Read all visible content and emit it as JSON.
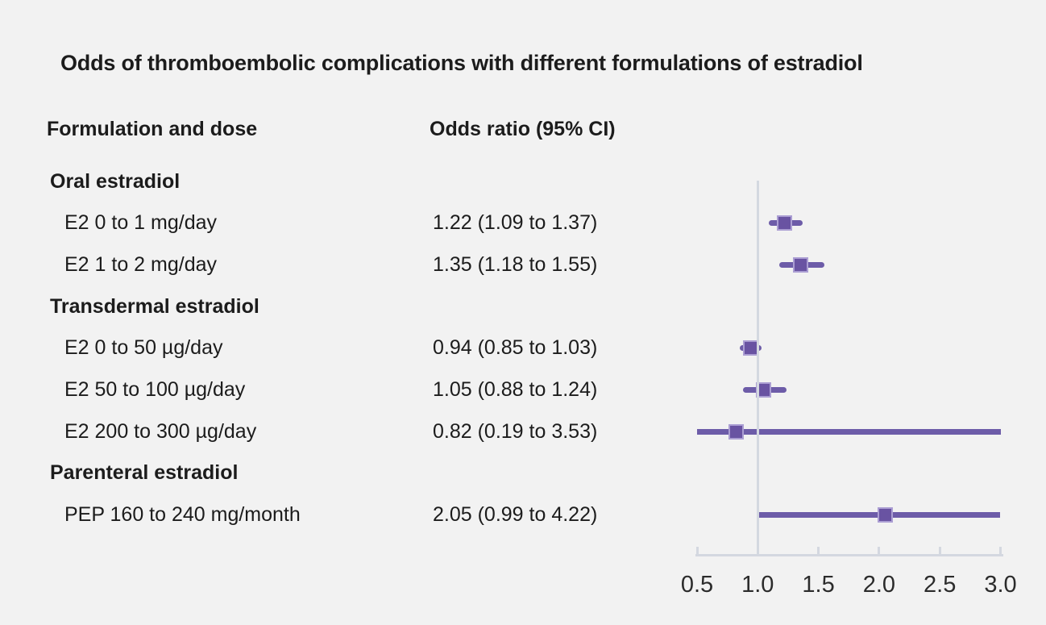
{
  "title": "Odds of thromboembolic complications with different formulations of estradiol",
  "columns": {
    "left": "Formulation and dose",
    "right": "Odds ratio (95% CI)"
  },
  "chart_data": {
    "type": "forest",
    "title": "Odds of thromboembolic complications with different formulations of estradiol",
    "xlim": [
      0.5,
      3.0
    ],
    "ticks": [
      0.5,
      1.0,
      1.5,
      2.0,
      2.5,
      3.0
    ],
    "reference_line": 1.0,
    "legend_position": "none",
    "grid": false,
    "rows": [
      {
        "type": "group",
        "label": "Oral estradiol"
      },
      {
        "type": "item",
        "label": "E2 0 to 1 mg/day",
        "or_text": "1.22 (1.09 to 1.37)",
        "or": 1.22,
        "lo": 1.09,
        "hi": 1.37
      },
      {
        "type": "item",
        "label": "E2 1 to 2 mg/day",
        "or_text": "1.35 (1.18 to 1.55)",
        "or": 1.35,
        "lo": 1.18,
        "hi": 1.55
      },
      {
        "type": "group",
        "label": "Transdermal estradiol"
      },
      {
        "type": "item",
        "label": "E2 0 to 50 µg/day",
        "or_text": "0.94 (0.85 to 1.03)",
        "or": 0.94,
        "lo": 0.85,
        "hi": 1.03
      },
      {
        "type": "item",
        "label": "E2 50 to 100 µg/day",
        "or_text": "1.05 (0.88 to 1.24)",
        "or": 1.05,
        "lo": 0.88,
        "hi": 1.24
      },
      {
        "type": "item",
        "label": "E2 200 to 300 µg/day",
        "or_text": "0.82 (0.19 to 3.53)",
        "or": 0.82,
        "lo": 0.19,
        "hi": 3.53
      },
      {
        "type": "group",
        "label": "Parenteral estradiol"
      },
      {
        "type": "item",
        "label": "PEP 160 to 240 mg/month",
        "or_text": "2.05 (0.99 to 4.22)",
        "or": 2.05,
        "lo": 0.99,
        "hi": 4.22
      }
    ]
  },
  "colors": {
    "background": "#f2f2f2",
    "text": "#1c1c1c",
    "marker_fill": "#6953a2",
    "marker_edge": "#ab9ed3",
    "ci_line": "#6d5ca8",
    "axis_line": "#d4d8e0",
    "reference_line": "#d4d8e0"
  }
}
